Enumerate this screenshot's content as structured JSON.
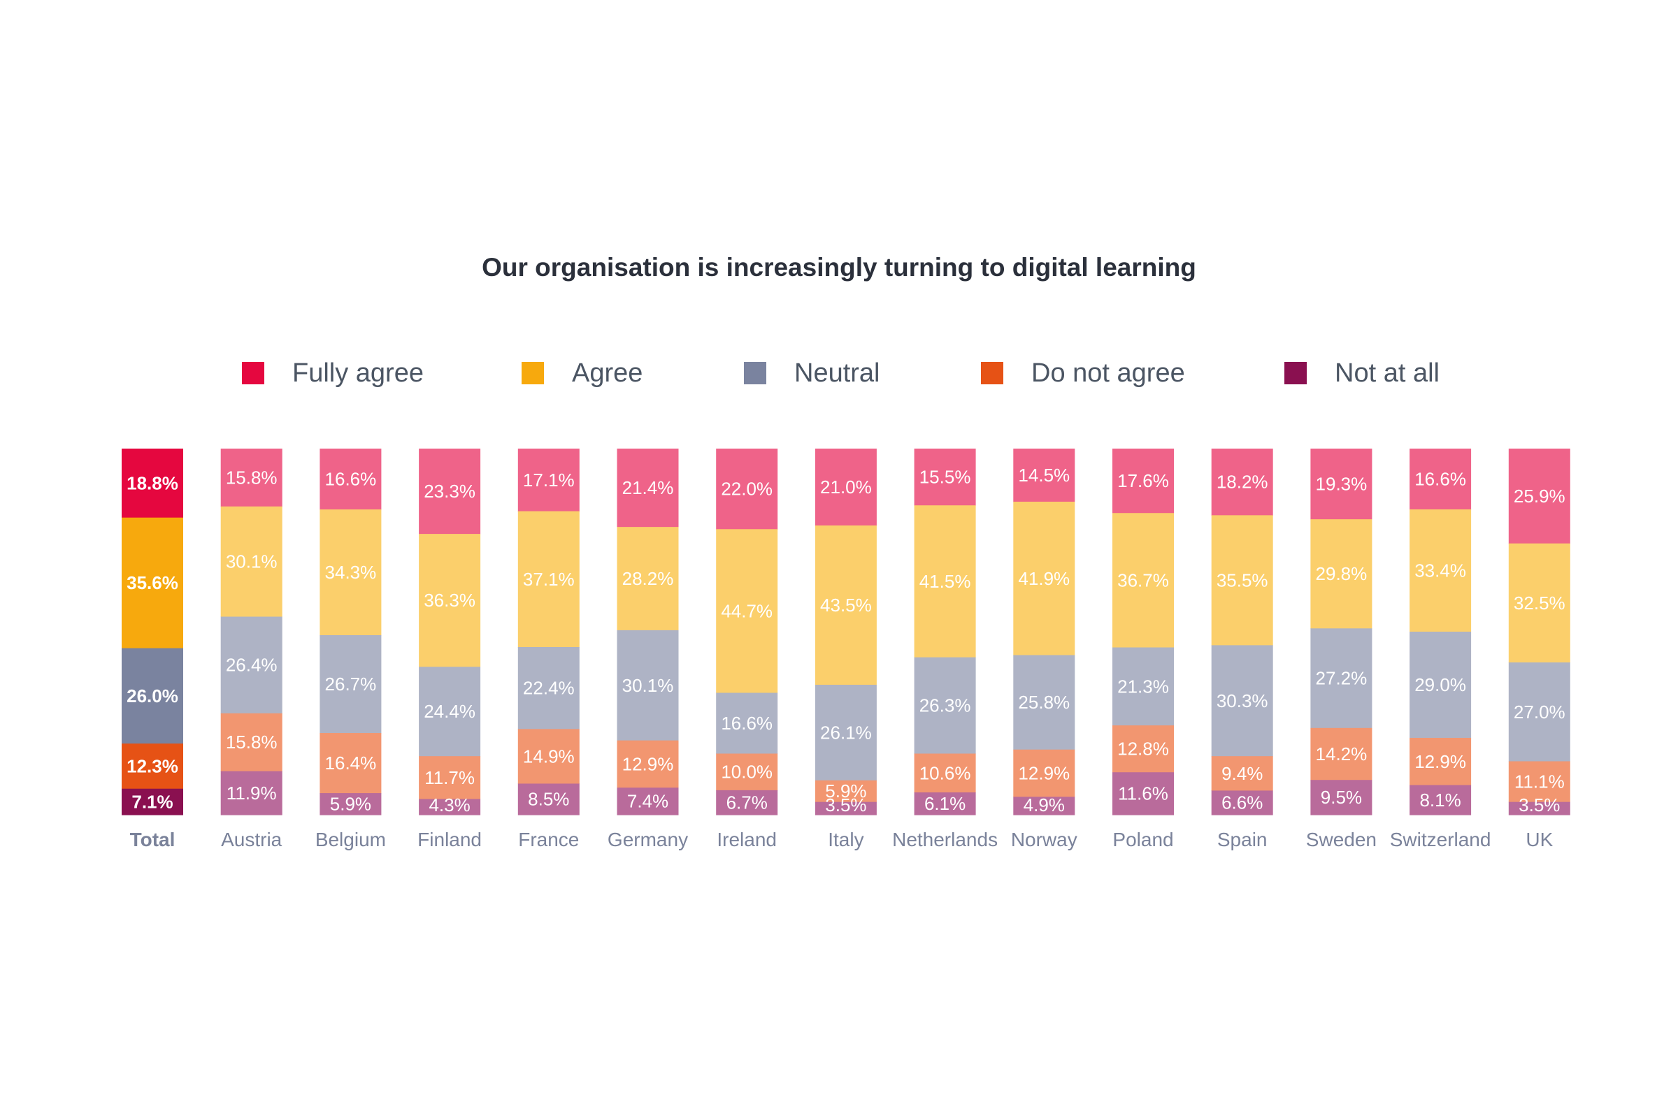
{
  "chart_data": {
    "type": "bar",
    "stacked": true,
    "title": "Our organisation is increasingly turning to digital learning",
    "legend_position": "top",
    "grid": false,
    "unit": "%",
    "categories": [
      "Total",
      "Austria",
      "Belgium",
      "Finland",
      "France",
      "Germany",
      "Ireland",
      "Italy",
      "Netherlands",
      "Norway",
      "Poland",
      "Spain",
      "Sweden",
      "Switzerland",
      "UK"
    ],
    "series": [
      {
        "name": "Fully agree",
        "color": "#e5073f",
        "light_color": "#ef6389",
        "values": [
          18.8,
          15.8,
          16.6,
          23.3,
          17.1,
          21.4,
          22.0,
          21.0,
          15.5,
          14.5,
          17.6,
          18.2,
          19.3,
          16.6,
          25.9
        ],
        "labels": [
          "18.8%",
          "15.8%",
          "16.6%",
          "23.3%",
          "17.1%",
          "21.4%",
          "22.0%",
          "21.0%",
          "15.5%",
          "14.5%",
          "17.6%",
          "18.2%",
          "19.3%",
          "16.6%",
          "25.9%"
        ]
      },
      {
        "name": "Agree",
        "color": "#f7a90d",
        "light_color": "#fbcf6b",
        "values": [
          35.6,
          30.1,
          34.3,
          36.3,
          37.1,
          28.2,
          44.7,
          43.5,
          41.5,
          41.9,
          36.7,
          35.5,
          29.8,
          33.4,
          32.5
        ],
        "labels": [
          "35.6%",
          "30.1%",
          "34.3%",
          "36.3%",
          "37.1%",
          "28.2%",
          "44.7%",
          "43.5%",
          "41.5%",
          "41.9%",
          "36.7%",
          "35.5%",
          "29.8%",
          "33.4%",
          "32.5%"
        ]
      },
      {
        "name": "Neutral",
        "color": "#7a839f",
        "light_color": "#aeb3c5",
        "values": [
          26.0,
          26.4,
          26.7,
          24.4,
          22.4,
          30.1,
          16.6,
          26.1,
          26.3,
          25.8,
          21.3,
          30.3,
          27.2,
          29.0,
          27.0
        ],
        "labels": [
          "26.0%",
          "26.4%",
          "26.7%",
          "24.4%",
          "22.4%",
          "30.1%",
          "16.6%",
          "26.1%",
          "26.3%",
          "25.8%",
          "21.3%",
          "30.3%",
          "27.2%",
          "29.0%",
          "27.0%"
        ]
      },
      {
        "name": "Do not agree",
        "color": "#e65215",
        "light_color": "#f29670",
        "values": [
          12.3,
          15.8,
          16.4,
          11.7,
          14.9,
          12.9,
          10.0,
          5.9,
          10.6,
          12.9,
          12.8,
          9.4,
          14.2,
          12.9,
          11.1
        ],
        "labels": [
          "12.3%",
          "15.8%",
          "16.4%",
          "11.7%",
          "14.9%",
          "12.9%",
          "10.0%",
          "5.9%",
          "10.6%",
          "12.9%",
          "12.8%",
          "9.4%",
          "14.2%",
          "12.9%",
          "11.1%"
        ]
      },
      {
        "name": "Not at all",
        "color": "#8a1050",
        "light_color": "#b96b9b",
        "values": [
          7.1,
          11.9,
          5.9,
          4.3,
          8.5,
          7.4,
          6.7,
          3.5,
          6.1,
          4.9,
          11.6,
          6.6,
          9.5,
          8.1,
          3.5
        ],
        "labels": [
          "7.1%",
          "11.9%",
          "5.9%",
          "4.3%",
          "8.5%",
          "7.4%",
          "6.7%",
          "3.5%",
          "6.1%",
          "4.9%",
          "11.6%",
          "6.6%",
          "9.5%",
          "8.1%",
          "3.5%"
        ]
      }
    ]
  }
}
